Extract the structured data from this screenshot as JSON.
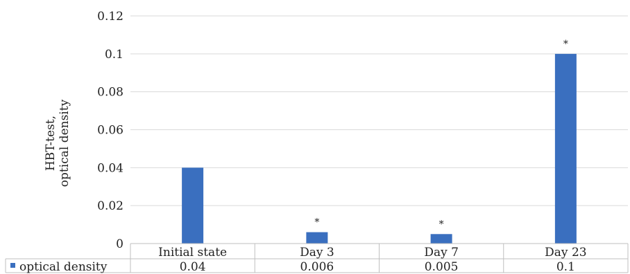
{
  "chart_data": {
    "type": "bar",
    "ylabel_lines": [
      "HBT-test,",
      "optical density"
    ],
    "categories": [
      "Initial state",
      "Day 3",
      "Day 7",
      "Day 23"
    ],
    "series": [
      {
        "name": "optical density",
        "values": [
          0.04,
          0.006,
          0.005,
          0.1
        ]
      }
    ],
    "table_values": [
      "0.04",
      "0.006",
      "0.005",
      "0.1"
    ],
    "annotations": [
      "",
      "*",
      "*",
      "*"
    ],
    "yticks": [
      "0",
      "0.02",
      "0.04",
      "0.06",
      "0.08",
      "0.1",
      "0.12"
    ],
    "ylim": [
      0,
      0.12
    ],
    "grid": true,
    "legend_position": "bottom-left (data table)",
    "colors": {
      "bar": "#3a6fbf",
      "grid": "#d9d9d9",
      "axis": "#bfbfbf"
    }
  }
}
